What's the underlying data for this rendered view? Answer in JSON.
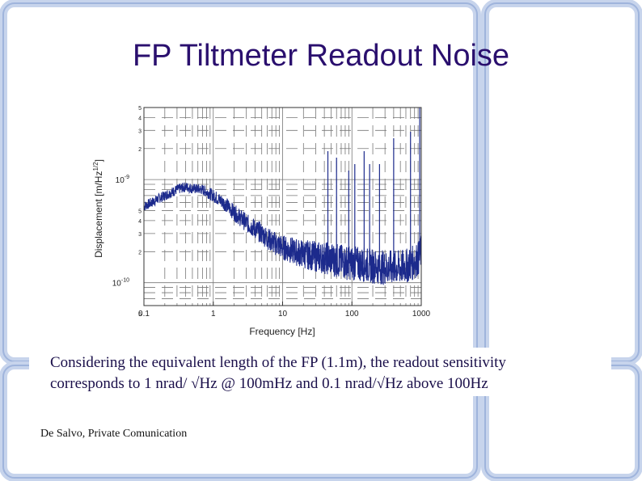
{
  "slide": {
    "title": "FP Tiltmeter Readout Noise",
    "caption_line1": "Considering the equivalent length of the FP (1.1m), the readout sensitivity",
    "caption_line2": "corresponds to 1 nrad/ √Hz @ 100mHz and 0.1 nrad/√Hz above 100Hz",
    "credit": "De Salvo, Private Comunication"
  },
  "colors": {
    "title": "#2a0f6e",
    "trace": "#1c2a8c",
    "frame_blue": "#b9c9e6",
    "frame_blue_dark": "#8ea6d4"
  },
  "chart_data": {
    "type": "line",
    "xlabel": "Frequency [Hz]",
    "ylabel": "Displacement [m/Hz",
    "ylabel_sup": "1/2",
    "ylabel_end": "]",
    "x_scale": "log",
    "y_scale": "log",
    "xlim": [
      0.1,
      1000
    ],
    "ylim": [
      6e-11,
      5e-09
    ],
    "grid": true,
    "x_ticks": [
      {
        "value": 0.1,
        "label": "0.1"
      },
      {
        "value": 1,
        "label": "1"
      },
      {
        "value": 10,
        "label": "10"
      },
      {
        "value": 100,
        "label": "100"
      },
      {
        "value": 1000,
        "label": "1000"
      }
    ],
    "y_ticks": [
      {
        "value": 1e-09,
        "label": "10",
        "exp": "-9"
      },
      {
        "value": 1e-10,
        "label": "10",
        "exp": "-10"
      }
    ],
    "y_minor_labels": [
      {
        "value": 5e-09,
        "label": "5"
      },
      {
        "value": 4e-09,
        "label": "4"
      },
      {
        "value": 3e-09,
        "label": "3"
      },
      {
        "value": 2e-09,
        "label": "2"
      },
      {
        "value": 5e-10,
        "label": "5"
      },
      {
        "value": 4e-10,
        "label": "4"
      },
      {
        "value": 3e-10,
        "label": "3"
      },
      {
        "value": 2e-10,
        "label": "2"
      },
      {
        "value": 5e-11,
        "label": "5"
      }
    ],
    "series": [
      {
        "x": [
          0.1,
          0.13,
          0.16,
          0.2,
          0.25,
          0.3,
          0.4,
          0.5,
          0.7,
          1,
          1.5,
          2,
          3,
          5,
          7,
          10,
          15,
          20,
          30,
          50,
          70,
          100,
          150,
          200,
          300,
          500,
          700,
          900,
          1000
        ],
        "y": [
          5.5e-10,
          6e-10,
          6.5e-10,
          7e-10,
          7.5e-10,
          8e-10,
          8.5e-10,
          8.2e-10,
          8e-10,
          7e-10,
          5.8e-10,
          4.8e-10,
          3.8e-10,
          3e-10,
          2.5e-10,
          2.2e-10,
          2e-10,
          1.9e-10,
          1.8e-10,
          1.7e-10,
          1.6e-10,
          1.55e-10,
          1.5e-10,
          1.45e-10,
          1.4e-10,
          1.4e-10,
          1.5e-10,
          1.7e-10,
          2e-10
        ]
      }
    ]
  }
}
